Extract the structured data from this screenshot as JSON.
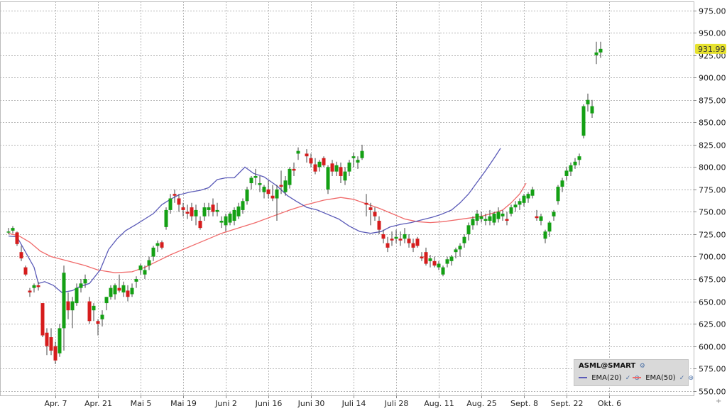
{
  "chart_data": {
    "type": "candlestick",
    "symbol": "ASML@SMART",
    "last_price": "931.99",
    "y_axis": {
      "ylim": [
        545,
        985
      ],
      "ticks": [
        "975.00",
        "950.00",
        "925.00",
        "900.00",
        "875.00",
        "850.00",
        "825.00",
        "800.00",
        "775.00",
        "750.00",
        "725.00",
        "700.00",
        "675.00",
        "650.00",
        "625.00",
        "600.00",
        "575.00",
        "550.00"
      ],
      "ticks_num": [
        975,
        950,
        925,
        900,
        875,
        850,
        825,
        800,
        775,
        750,
        725,
        700,
        675,
        650,
        625,
        600,
        575,
        550
      ]
    },
    "x_axis": {
      "labels": [
        "Apr. 7",
        "Apr. 21",
        "Mai 5",
        "Mai 19",
        "Juni 2",
        "Juni 16",
        "Juni 30",
        "Juli 14",
        "Juli 28",
        "Aug. 11",
        "Aug. 25",
        "Sept. 8",
        "Sept. 22",
        "Okt. 6"
      ],
      "label_index": [
        11,
        21,
        31,
        41,
        51,
        61,
        71,
        81,
        91,
        101,
        111,
        121,
        131,
        141
      ],
      "total_slots": 143
    },
    "grid": true,
    "candles": [
      [
        728,
        732,
        725,
        728
      ],
      [
        729,
        734,
        726,
        732
      ],
      [
        727,
        728,
        712,
        714
      ],
      [
        705,
        712,
        695,
        698
      ],
      [
        688,
        690,
        678,
        680
      ],
      [
        662,
        665,
        655,
        660
      ],
      [
        665,
        670,
        660,
        668
      ],
      [
        668,
        672,
        662,
        666
      ],
      [
        648,
        648,
        610,
        612
      ],
      [
        615,
        620,
        590,
        600
      ],
      [
        610,
        620,
        590,
        595
      ],
      [
        600,
        605,
        580,
        584
      ],
      [
        592,
        625,
        588,
        620
      ],
      [
        620,
        690,
        595,
        682
      ],
      [
        650,
        660,
        630,
        640
      ],
      [
        640,
        655,
        620,
        650
      ],
      [
        648,
        670,
        645,
        665
      ],
      [
        665,
        675,
        660,
        670
      ],
      [
        670,
        680,
        665,
        675
      ],
      [
        650,
        655,
        625,
        628
      ],
      [
        640,
        648,
        628,
        645
      ],
      [
        628,
        630,
        612,
        625
      ],
      [
        630,
        640,
        622,
        635
      ],
      [
        648,
        655,
        640,
        655
      ],
      [
        655,
        668,
        652,
        665
      ],
      [
        658,
        670,
        652,
        668
      ],
      [
        665,
        680,
        660,
        662
      ],
      [
        660,
        672,
        655,
        668
      ],
      [
        662,
        668,
        650,
        655
      ],
      [
        658,
        670,
        655,
        665
      ],
      [
        672,
        678,
        665,
        675
      ],
      [
        685,
        692,
        680,
        690
      ],
      [
        680,
        690,
        675,
        685
      ],
      [
        690,
        700,
        685,
        696
      ],
      [
        700,
        712,
        695,
        710
      ],
      [
        712,
        718,
        705,
        715
      ],
      [
        716,
        718,
        708,
        710
      ],
      [
        733,
        755,
        730,
        752
      ],
      [
        752,
        770,
        748,
        765
      ],
      [
        770,
        775,
        760,
        768
      ],
      [
        765,
        770,
        750,
        758
      ],
      [
        755,
        760,
        745,
        752
      ],
      [
        750,
        758,
        742,
        748
      ],
      [
        755,
        760,
        740,
        745
      ],
      [
        745,
        758,
        735,
        752
      ],
      [
        740,
        745,
        730,
        732
      ],
      [
        745,
        760,
        740,
        755
      ],
      [
        752,
        760,
        745,
        755
      ],
      [
        758,
        765,
        745,
        750
      ],
      [
        750,
        760,
        745,
        752
      ],
      [
        738,
        745,
        732,
        740
      ],
      [
        735,
        748,
        728,
        745
      ],
      [
        738,
        750,
        735,
        748
      ],
      [
        740,
        755,
        735,
        752
      ],
      [
        745,
        760,
        742,
        756
      ],
      [
        752,
        765,
        748,
        762
      ],
      [
        762,
        778,
        758,
        775
      ],
      [
        782,
        790,
        775,
        788
      ],
      [
        788,
        798,
        780,
        790
      ],
      [
        780,
        790,
        772,
        782
      ],
      [
        772,
        780,
        765,
        778
      ],
      [
        775,
        785,
        765,
        770
      ],
      [
        768,
        780,
        762,
        765
      ],
      [
        765,
        780,
        740,
        775
      ],
      [
        780,
        796,
        770,
        778
      ],
      [
        772,
        790,
        768,
        785
      ],
      [
        780,
        800,
        776,
        798
      ],
      [
        798,
        805,
        790,
        796
      ],
      [
        815,
        822,
        808,
        818
      ],
      [
        815,
        820,
        805,
        812
      ],
      [
        810,
        815,
        800,
        804
      ],
      [
        803,
        810,
        792,
        795
      ],
      [
        800,
        808,
        795,
        806
      ],
      [
        810,
        812,
        800,
        802
      ],
      [
        775,
        802,
        770,
        800
      ],
      [
        804,
        808,
        790,
        795
      ],
      [
        795,
        806,
        790,
        802
      ],
      [
        800,
        805,
        782,
        790
      ],
      [
        785,
        800,
        780,
        795
      ],
      [
        795,
        808,
        790,
        805
      ],
      [
        810,
        816,
        800,
        812
      ],
      [
        805,
        812,
        798,
        808
      ],
      [
        810,
        825,
        808,
        818
      ],
      [
        760,
        770,
        745,
        758
      ],
      [
        755,
        760,
        735,
        752
      ],
      [
        750,
        755,
        740,
        745
      ],
      [
        740,
        745,
        725,
        730
      ],
      [
        725,
        730,
        715,
        720
      ],
      [
        715,
        722,
        705,
        710
      ],
      [
        720,
        728,
        712,
        718
      ],
      [
        720,
        730,
        715,
        722
      ],
      [
        720,
        728,
        712,
        718
      ],
      [
        720,
        732,
        715,
        725
      ],
      [
        720,
        725,
        710,
        715
      ],
      [
        715,
        720,
        705,
        710
      ],
      [
        720,
        722,
        710,
        712
      ],
      [
        700,
        705,
        695,
        698
      ],
      [
        705,
        710,
        690,
        692
      ],
      [
        695,
        702,
        688,
        698
      ],
      [
        695,
        700,
        688,
        690
      ],
      [
        688,
        695,
        685,
        692
      ],
      [
        680,
        690,
        678,
        688
      ],
      [
        692,
        700,
        688,
        697
      ],
      [
        695,
        702,
        690,
        700
      ],
      [
        705,
        710,
        698,
        708
      ],
      [
        708,
        715,
        700,
        712
      ],
      [
        715,
        725,
        710,
        722
      ],
      [
        725,
        738,
        718,
        735
      ],
      [
        735,
        745,
        730,
        742
      ],
      [
        740,
        752,
        735,
        748
      ],
      [
        742,
        750,
        738,
        745
      ],
      [
        740,
        748,
        735,
        742
      ],
      [
        740,
        752,
        735,
        745
      ],
      [
        738,
        750,
        735,
        748
      ],
      [
        742,
        755,
        738,
        750
      ],
      [
        745,
        752,
        740,
        748
      ],
      [
        742,
        750,
        735,
        740
      ],
      [
        748,
        758,
        745,
        755
      ],
      [
        755,
        762,
        750,
        758
      ],
      [
        758,
        765,
        752,
        762
      ],
      [
        760,
        770,
        756,
        768
      ],
      [
        765,
        772,
        760,
        770
      ],
      [
        768,
        778,
        765,
        775
      ],
      [
        745,
        752,
        740,
        743
      ],
      [
        740,
        748,
        735,
        745
      ],
      [
        720,
        730,
        715,
        728
      ],
      [
        728,
        740,
        722,
        738
      ],
      [
        745,
        752,
        740,
        750
      ],
      [
        762,
        780,
        758,
        778
      ],
      [
        778,
        788,
        772,
        785
      ],
      [
        790,
        800,
        785,
        796
      ],
      [
        795,
        805,
        790,
        802
      ],
      [
        802,
        810,
        798,
        806
      ],
      [
        808,
        815,
        802,
        812
      ],
      [
        835,
        870,
        832,
        868
      ],
      [
        870,
        882,
        862,
        875
      ],
      [
        860,
        875,
        855,
        868
      ],
      [
        925,
        940,
        915,
        928
      ],
      [
        928,
        940,
        922,
        932
      ]
    ],
    "ema20": [
      [
        0,
        723
      ],
      [
        4,
        722
      ],
      [
        8,
        705
      ],
      [
        12,
        688
      ],
      [
        14,
        670
      ],
      [
        17,
        672
      ],
      [
        21,
        668
      ],
      [
        25,
        660
      ],
      [
        30,
        662
      ],
      [
        33,
        666
      ],
      [
        38,
        670
      ],
      [
        43,
        685
      ],
      [
        47,
        708
      ],
      [
        51,
        720
      ],
      [
        55,
        729
      ],
      [
        60,
        736
      ],
      [
        64,
        742
      ],
      [
        68,
        748
      ],
      [
        72,
        758
      ],
      [
        76,
        764
      ],
      [
        80,
        769
      ],
      [
        85,
        772
      ],
      [
        90,
        774
      ],
      [
        94,
        777
      ],
      [
        98,
        786
      ],
      [
        102,
        788
      ],
      [
        106,
        788
      ],
      [
        111,
        800
      ],
      [
        115,
        793
      ],
      [
        120,
        789
      ],
      [
        126,
        779
      ],
      [
        131,
        768
      ],
      [
        135,
        762
      ],
      [
        140,
        755
      ],
      [
        145,
        752
      ],
      [
        150,
        747
      ],
      [
        155,
        742
      ],
      [
        160,
        734
      ],
      [
        165,
        728
      ],
      [
        170,
        726
      ],
      [
        175,
        728
      ],
      [
        179,
        733
      ],
      [
        184,
        736
      ],
      [
        189,
        738
      ],
      [
        194,
        741
      ],
      [
        199,
        744
      ],
      [
        203,
        747
      ],
      [
        208,
        752
      ],
      [
        212,
        760
      ],
      [
        216,
        770
      ],
      [
        220,
        783
      ],
      [
        224,
        796
      ],
      [
        228,
        810
      ],
      [
        231,
        821
      ]
    ],
    "ema50": [
      [
        0,
        726
      ],
      [
        5,
        723
      ],
      [
        10,
        716
      ],
      [
        15,
        706
      ],
      [
        20,
        700
      ],
      [
        28,
        695
      ],
      [
        36,
        690
      ],
      [
        42,
        685
      ],
      [
        50,
        682
      ],
      [
        58,
        683
      ],
      [
        64,
        688
      ],
      [
        70,
        695
      ],
      [
        76,
        702
      ],
      [
        82,
        708
      ],
      [
        88,
        714
      ],
      [
        94,
        720
      ],
      [
        100,
        726
      ],
      [
        108,
        732
      ],
      [
        116,
        738
      ],
      [
        124,
        745
      ],
      [
        132,
        752
      ],
      [
        140,
        758
      ],
      [
        148,
        763
      ],
      [
        156,
        766
      ],
      [
        162,
        764
      ],
      [
        168,
        759
      ],
      [
        174,
        754
      ],
      [
        180,
        748
      ],
      [
        186,
        742
      ],
      [
        192,
        739
      ],
      [
        198,
        738
      ],
      [
        204,
        739
      ],
      [
        210,
        741
      ],
      [
        216,
        743
      ],
      [
        222,
        745
      ],
      [
        228,
        749
      ],
      [
        232,
        752
      ],
      [
        236,
        760
      ],
      [
        240,
        770
      ],
      [
        243,
        782
      ]
    ],
    "ema_x_scale_note": "",
    "colors": {
      "up": "#14a014",
      "down": "#d61d1d",
      "ema20": "#5b5bb8",
      "ema50": "#f06a6a",
      "price_tag": "#e6e22e",
      "grid": "#b5b5b5"
    }
  },
  "legend": {
    "symbol": "ASML@SMART",
    "settings_glyph": "⚙",
    "ema20_label": "EMA(20)",
    "ema50_label": "EMA(50)",
    "check_glyph": "✓",
    "eye_glyph": "⊛"
  },
  "corner_glyph": "+"
}
